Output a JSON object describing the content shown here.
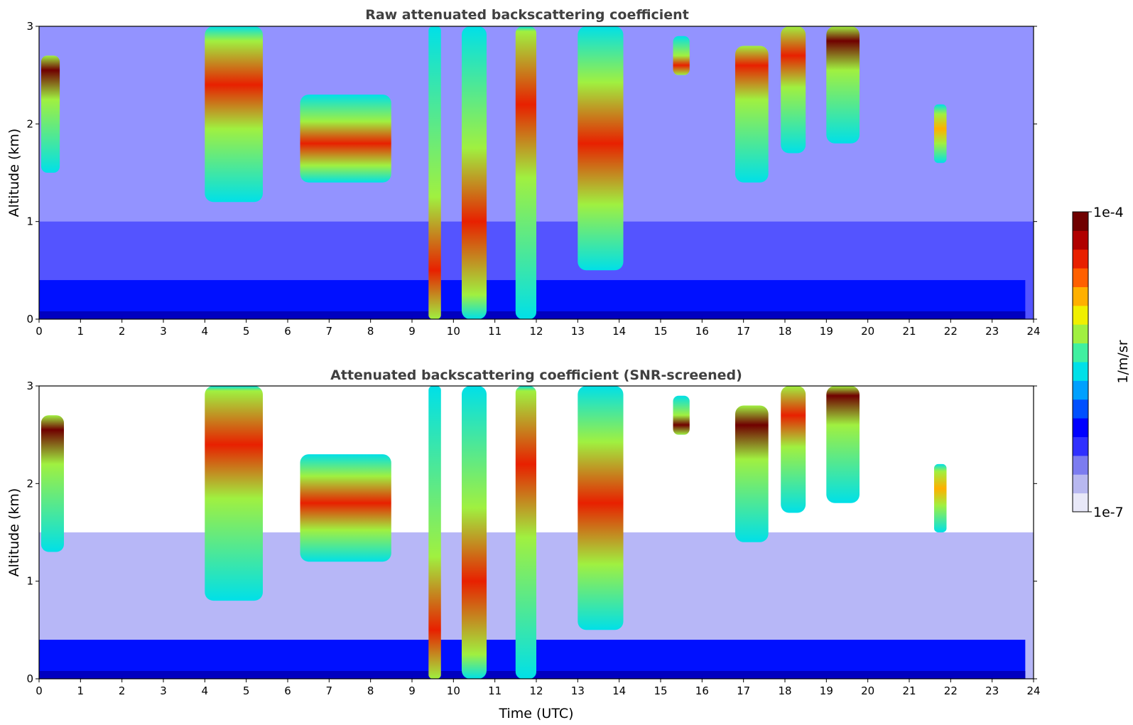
{
  "figure": {
    "colorbar": {
      "max_label": "1e-4",
      "min_label": "1e-7",
      "unit_label": "1/m/sr",
      "colormap": [
        "#e8e8f8",
        "#b8b8f0",
        "#7c7cf0",
        "#3030ff",
        "#0000ff",
        "#0050ff",
        "#00a0ff",
        "#00e0e8",
        "#40f0a0",
        "#a0f040",
        "#f0f000",
        "#ffb000",
        "#ff6000",
        "#e82000",
        "#b00000",
        "#700000"
      ]
    },
    "xlabel": "Time (UTC)"
  },
  "chart_data": [
    {
      "type": "heatmap",
      "title": "Raw attenuated backscattering coefficient",
      "xlabel": "",
      "ylabel": "Altitude (km)",
      "xlim": [
        0,
        24
      ],
      "ylim": [
        0,
        3
      ],
      "x_ticks": [
        "0",
        "1",
        "2",
        "3",
        "4",
        "5",
        "6",
        "7",
        "8",
        "9",
        "10",
        "11",
        "12",
        "13",
        "14",
        "15",
        "16",
        "17",
        "18",
        "19",
        "20",
        "21",
        "22",
        "23",
        "24"
      ],
      "y_ticks": [
        "0",
        "1",
        "2",
        "3"
      ],
      "color_scale": "log",
      "clim": [
        "1e-7",
        "1e-4"
      ],
      "screened": false,
      "features": [
        {
          "t_start": 0.05,
          "t_end": 0.5,
          "alt_bottom": 1.5,
          "alt_top": 2.7,
          "peak_alt": 2.55,
          "level": "very high"
        },
        {
          "t_start": 4.0,
          "t_end": 5.4,
          "alt_bottom": 1.2,
          "alt_top": 3.0,
          "peak_alt": 2.4,
          "level": "high"
        },
        {
          "t_start": 6.3,
          "t_end": 8.5,
          "alt_bottom": 1.4,
          "alt_top": 2.3,
          "peak_alt": 1.8,
          "level": "high"
        },
        {
          "t_start": 9.4,
          "t_end": 9.7,
          "alt_bottom": 0.0,
          "alt_top": 3.0,
          "peak_alt": 0.5,
          "level": "high"
        },
        {
          "t_start": 10.2,
          "t_end": 10.8,
          "alt_bottom": 0.0,
          "alt_top": 3.0,
          "peak_alt": 1.0,
          "level": "high"
        },
        {
          "t_start": 11.5,
          "t_end": 12.0,
          "alt_bottom": 0.0,
          "alt_top": 3.0,
          "peak_alt": 2.2,
          "level": "high"
        },
        {
          "t_start": 13.0,
          "t_end": 14.1,
          "alt_bottom": 0.5,
          "alt_top": 3.0,
          "peak_alt": 1.8,
          "level": "high"
        },
        {
          "t_start": 15.3,
          "t_end": 15.7,
          "alt_bottom": 2.5,
          "alt_top": 2.9,
          "peak_alt": 2.6,
          "level": "high"
        },
        {
          "t_start": 16.8,
          "t_end": 17.6,
          "alt_bottom": 1.4,
          "alt_top": 2.8,
          "peak_alt": 2.6,
          "level": "high"
        },
        {
          "t_start": 17.9,
          "t_end": 18.5,
          "alt_bottom": 1.7,
          "alt_top": 3.0,
          "peak_alt": 2.7,
          "level": "high"
        },
        {
          "t_start": 19.0,
          "t_end": 19.8,
          "alt_bottom": 1.8,
          "alt_top": 3.0,
          "peak_alt": 2.85,
          "level": "very high"
        },
        {
          "t_start": 21.6,
          "t_end": 21.9,
          "alt_bottom": 1.6,
          "alt_top": 2.2,
          "peak_alt": 1.95,
          "level": "medium"
        }
      ]
    },
    {
      "type": "heatmap",
      "title": "Attenuated backscattering coefficient (SNR-screened)",
      "xlabel": "Time (UTC)",
      "ylabel": "Altitude (km)",
      "xlim": [
        0,
        24
      ],
      "ylim": [
        0,
        3
      ],
      "x_ticks": [
        "0",
        "1",
        "2",
        "3",
        "4",
        "5",
        "6",
        "7",
        "8",
        "9",
        "10",
        "11",
        "12",
        "13",
        "14",
        "15",
        "16",
        "17",
        "18",
        "19",
        "20",
        "21",
        "22",
        "23",
        "24"
      ],
      "y_ticks": [
        "0",
        "1",
        "2",
        "3"
      ],
      "color_scale": "log",
      "clim": [
        "1e-7",
        "1e-4"
      ],
      "screened": true,
      "features": [
        {
          "t_start": 0.05,
          "t_end": 0.6,
          "alt_bottom": 1.3,
          "alt_top": 2.7,
          "peak_alt": 2.55,
          "level": "very high"
        },
        {
          "t_start": 4.0,
          "t_end": 5.4,
          "alt_bottom": 0.8,
          "alt_top": 3.0,
          "peak_alt": 2.4,
          "level": "high"
        },
        {
          "t_start": 6.3,
          "t_end": 8.5,
          "alt_bottom": 1.2,
          "alt_top": 2.3,
          "peak_alt": 1.8,
          "level": "high"
        },
        {
          "t_start": 9.4,
          "t_end": 9.7,
          "alt_bottom": 0.0,
          "alt_top": 3.0,
          "peak_alt": 0.5,
          "level": "high"
        },
        {
          "t_start": 10.2,
          "t_end": 10.8,
          "alt_bottom": 0.0,
          "alt_top": 3.0,
          "peak_alt": 1.0,
          "level": "high"
        },
        {
          "t_start": 11.5,
          "t_end": 12.0,
          "alt_bottom": 0.0,
          "alt_top": 3.0,
          "peak_alt": 2.2,
          "level": "high"
        },
        {
          "t_start": 13.0,
          "t_end": 14.1,
          "alt_bottom": 0.5,
          "alt_top": 3.0,
          "peak_alt": 1.8,
          "level": "high"
        },
        {
          "t_start": 15.3,
          "t_end": 15.7,
          "alt_bottom": 2.5,
          "alt_top": 2.9,
          "peak_alt": 2.6,
          "level": "very high"
        },
        {
          "t_start": 16.8,
          "t_end": 17.6,
          "alt_bottom": 1.4,
          "alt_top": 2.8,
          "peak_alt": 2.6,
          "level": "very high"
        },
        {
          "t_start": 17.9,
          "t_end": 18.5,
          "alt_bottom": 1.7,
          "alt_top": 3.0,
          "peak_alt": 2.7,
          "level": "high"
        },
        {
          "t_start": 19.0,
          "t_end": 19.8,
          "alt_bottom": 1.8,
          "alt_top": 3.0,
          "peak_alt": 2.9,
          "level": "very high"
        },
        {
          "t_start": 21.6,
          "t_end": 21.9,
          "alt_bottom": 1.5,
          "alt_top": 2.2,
          "peak_alt": 1.95,
          "level": "medium"
        }
      ]
    }
  ]
}
